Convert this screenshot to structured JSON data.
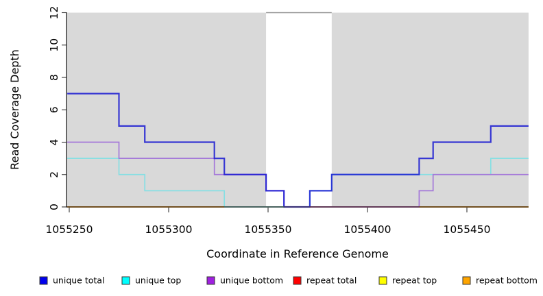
{
  "chart_data": {
    "type": "line",
    "step": true,
    "title": "",
    "xlabel": "Coordinate in Reference Genome",
    "ylabel": "Read Coverage Depth",
    "xlim": [
      1055249,
      1055481
    ],
    "ylim": [
      0,
      12
    ],
    "grid": false,
    "x_ticks": {
      "values": [
        1055250,
        1055300,
        1055350,
        1055400,
        1055450
      ],
      "labels": [
        "1055250",
        "1055300",
        "1055350",
        "1055400",
        "1055450"
      ]
    },
    "y_ticks": {
      "values": [
        0,
        2,
        4,
        6,
        8,
        10,
        12
      ],
      "labels": [
        "0",
        "2",
        "4",
        "6",
        "8",
        "10",
        "12"
      ]
    },
    "plot_background_color": "#D9D9D9",
    "shaded_regions": [
      {
        "x0": 1055249,
        "x1": 1055349
      },
      {
        "x0": 1055382,
        "x1": 1055481
      }
    ],
    "uncovered_gap": {
      "x0": 1055349,
      "x1": 1055382,
      "top_line_y": 12,
      "top_line_color": "#8F8F8F"
    },
    "series": [
      {
        "name": "unique total",
        "line_color": "#1414D2",
        "line_opacity": 0.82,
        "line_width": 2.2,
        "points": [
          [
            1055249,
            7
          ],
          [
            1055275,
            5
          ],
          [
            1055288,
            4
          ],
          [
            1055323,
            3
          ],
          [
            1055328,
            2
          ],
          [
            1055349,
            1
          ],
          [
            1055358,
            0
          ],
          [
            1055371,
            1
          ],
          [
            1055382,
            2
          ],
          [
            1055426,
            3
          ],
          [
            1055433,
            4
          ],
          [
            1055462,
            5
          ],
          [
            1055481,
            5
          ]
        ]
      },
      {
        "name": "unique top",
        "line_color": "#86DFE3",
        "line_opacity": 1,
        "line_width": 1.7,
        "points": [
          [
            1055249,
            3
          ],
          [
            1055275,
            2
          ],
          [
            1055288,
            1
          ],
          [
            1055328,
            0
          ],
          [
            1055371,
            1
          ],
          [
            1055382,
            2
          ],
          [
            1055462,
            3
          ],
          [
            1055481,
            3
          ]
        ]
      },
      {
        "name": "unique bottom",
        "line_color": "#A478D9",
        "line_opacity": 1,
        "line_width": 1.7,
        "points": [
          [
            1055249,
            4
          ],
          [
            1055275,
            3
          ],
          [
            1055323,
            2
          ],
          [
            1055349,
            1
          ],
          [
            1055358,
            0
          ],
          [
            1055426,
            1
          ],
          [
            1055433,
            2
          ],
          [
            1055481,
            2
          ]
        ]
      },
      {
        "name": "repeat total",
        "line_color": "#E06078",
        "line_opacity": 1,
        "line_width": 1.7,
        "render": "overlay",
        "points": [
          [
            1055249,
            0
          ],
          [
            1055481,
            0
          ]
        ]
      },
      {
        "name": "repeat top",
        "line_color": "#FFFF00",
        "line_opacity": 1,
        "line_width": 1.7,
        "render": "overlay",
        "points": [
          [
            1055249,
            0
          ],
          [
            1055481,
            0
          ]
        ]
      },
      {
        "name": "repeat bottom",
        "line_color": "#FFA500",
        "line_opacity": 1,
        "line_width": 2,
        "render": "overlay",
        "points": [
          [
            1055249,
            0
          ],
          [
            1055481,
            0
          ]
        ]
      }
    ],
    "depth_zero_overlay_segments": [
      {
        "x0": 1055249,
        "x1": 1055328,
        "color": "#FFA500",
        "width": 2
      },
      {
        "x0": 1055328,
        "x1": 1055358,
        "color": "#8FD792",
        "width": 1.7
      },
      {
        "x0": 1055358,
        "x1": 1055371,
        "color": "#6E56E0",
        "width": 2
      },
      {
        "x0": 1055371,
        "x1": 1055426,
        "color": "#E06078",
        "width": 1.7
      },
      {
        "x0": 1055426,
        "x1": 1055481,
        "color": "#FFA500",
        "width": 2
      }
    ],
    "legend": {
      "position": "bottom",
      "items": [
        {
          "label": "unique total",
          "color": "#0000EE"
        },
        {
          "label": "unique top",
          "color": "#00FFFF"
        },
        {
          "label": "unique bottom",
          "color": "#A020E0"
        },
        {
          "label": "repeat total",
          "color": "#FF0000"
        },
        {
          "label": "repeat top",
          "color": "#FFFF00"
        },
        {
          "label": "repeat bottom",
          "color": "#FFA500"
        }
      ]
    }
  }
}
